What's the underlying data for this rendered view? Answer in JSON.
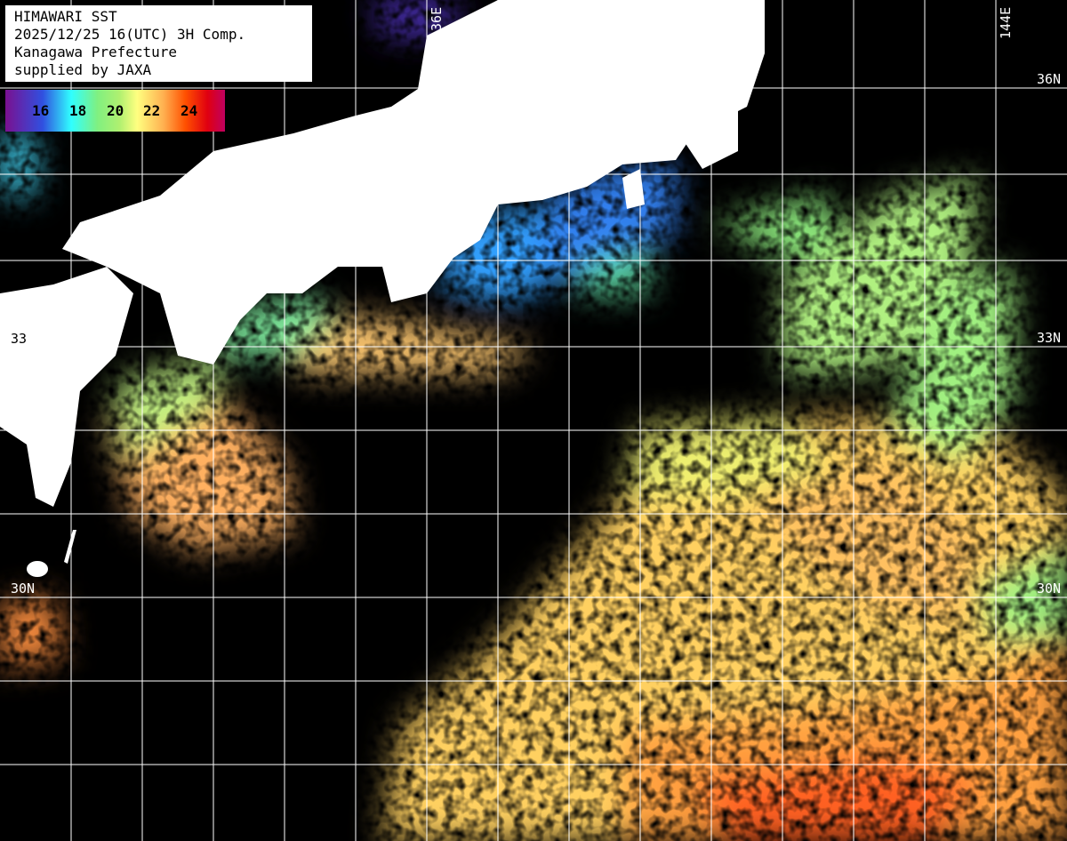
{
  "title": {
    "lines": [
      "HIMAWARI SST",
      "2025/12/25 16(UTC) 3H Comp.",
      "Kanagawa Prefecture",
      "supplied by JAXA"
    ]
  },
  "legend": {
    "ticks": [
      "16",
      "18",
      "20",
      "22",
      "24"
    ],
    "colors": [
      "#7a1090",
      "#3050e0",
      "#30ffff",
      "#80f080",
      "#ffff80",
      "#ffb050",
      "#ff5000",
      "#e00010",
      "#c00060"
    ]
  },
  "grid": {
    "lon_labels": [
      "136E",
      "144E"
    ],
    "lat_labels": [
      "36N",
      "33N",
      "30N"
    ],
    "left_lat_labels": [
      "33",
      "30N"
    ],
    "right_lat_labels": [
      "36N",
      "33N",
      "30N"
    ]
  },
  "colors": {
    "land": "#ffffff",
    "no_data": "#000000",
    "grid": "#ffffff"
  }
}
